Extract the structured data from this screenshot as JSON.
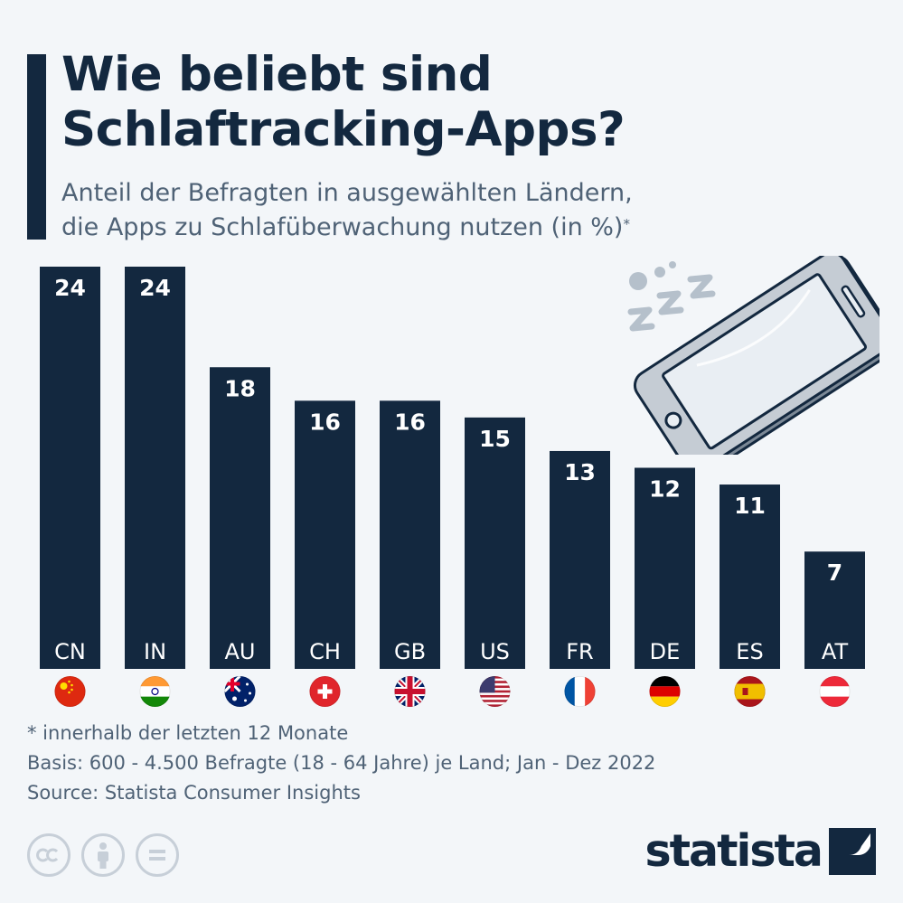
{
  "title_lines": [
    "Wie beliebt sind",
    "Schlaftracking-Apps?"
  ],
  "subtitle_lines": [
    "Anteil der Befragten in ausgewählten Ländern,",
    "die Apps zu Schlafüberwachung nutzen (in %)"
  ],
  "subtitle_footnote_mark": "*",
  "chart_data": {
    "type": "bar",
    "categories": [
      "CN",
      "IN",
      "AU",
      "CH",
      "GB",
      "US",
      "FR",
      "DE",
      "ES",
      "AT"
    ],
    "values": [
      24,
      24,
      18,
      16,
      16,
      15,
      13,
      12,
      11,
      7
    ],
    "flags": [
      "China",
      "India",
      "Australia",
      "Switzerland",
      "United Kingdom",
      "United States",
      "France",
      "Germany",
      "Spain",
      "Austria"
    ],
    "unit": "%",
    "colors": {
      "bar": "#13283f",
      "bar_text": "#ffffff"
    }
  },
  "illustration": {
    "icon": "sleeping-phone-icon",
    "zzz": "zzz"
  },
  "footnotes": [
    "* innerhalb der letzten 12 Monate",
    "Basis: 600 - 4.500 Befragte (18 - 64 Jahre) je Land; Jan - Dez 2022",
    "Source: Statista Consumer Insights"
  ],
  "license_icons": [
    "creative-commons-icon",
    "attribution-icon",
    "no-derivatives-icon"
  ],
  "logo": {
    "text": "statista",
    "icon": "statista-logo-icon"
  },
  "colors": {
    "background": "#f3f6f9",
    "navy": "#13283f",
    "gray_text": "#4f6276"
  }
}
